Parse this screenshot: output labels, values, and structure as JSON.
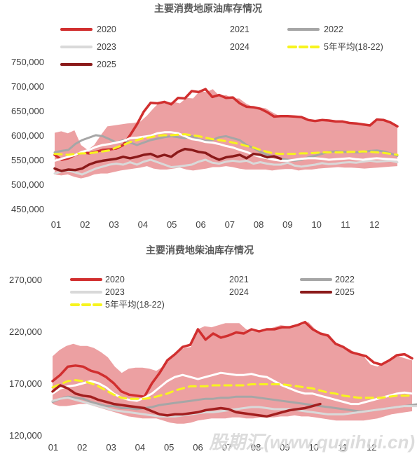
{
  "watermark": "股期汇(www.qugihui.cn)",
  "colors": {
    "band": "#eca0a2",
    "y2020": "#d12f2f",
    "y2021": "#f2b3b3",
    "y2022": "#a6a6a6",
    "y2023": "#d9d9d9",
    "y2024": "#ffffff",
    "y2025": "#8b1a1a",
    "avg": "#f7f41e"
  },
  "chart_data": [
    {
      "type": "line",
      "title": "主要消费地原油库存情况",
      "xlabel": "",
      "ylabel": "",
      "x_ticks": [
        "01",
        "02",
        "03",
        "04",
        "05",
        "06",
        "07",
        "08",
        "09",
        "10",
        "11",
        "12"
      ],
      "y_ticks": [
        "750,000",
        "700,000",
        "650,000",
        "600,000",
        "550,000",
        "500,000",
        "450,000"
      ],
      "ylim": [
        450000,
        750000
      ],
      "band_name": "2021",
      "band": {
        "upper": [
          605000,
          608000,
          604000,
          610000,
          580000,
          570000,
          580000,
          600000,
          618000,
          620000,
          622000,
          624000,
          625000,
          628000,
          640000,
          655000,
          668000,
          666000,
          668000,
          665000,
          676000,
          675000,
          690000,
          688000,
          694000,
          680000,
          682000,
          675000,
          675000,
          665000,
          658000,
          657000,
          655000,
          647000,
          640000,
          640000,
          640000,
          638000,
          637000,
          630000,
          628000,
          630000,
          630000,
          628000,
          628000,
          625000,
          625000,
          623000,
          620000,
          633000,
          632000,
          627000,
          618000
        ],
        "lower": [
          520000,
          518000,
          520000,
          515000,
          512000,
          515000,
          520000,
          522000,
          522000,
          525000,
          528000,
          530000,
          532000,
          534000,
          537000,
          532000,
          530000,
          530000,
          532000,
          534000,
          530000,
          528000,
          530000,
          532000,
          535000,
          535000,
          537000,
          535000,
          532000,
          530000,
          530000,
          530000,
          530000,
          528000,
          530000,
          531000,
          531000,
          528000,
          530000,
          530000,
          532000,
          533000,
          534000,
          535000,
          534000,
          534000,
          533000,
          532000,
          533000,
          534000,
          535000,
          536000,
          537000
        ]
      },
      "series": [
        {
          "name": "2020",
          "color": "#d12f2f",
          "width": 3.5,
          "dash": "",
          "values": [
            560000,
            550000,
            553000,
            560000,
            565000,
            563000,
            566000,
            570000,
            571000,
            573000,
            580000,
            600000,
            622000,
            648000,
            666000,
            665000,
            668000,
            663000,
            676000,
            675000,
            690000,
            688000,
            694000,
            678000,
            682000,
            676000,
            677000,
            665000,
            658000,
            657000,
            654000,
            647000,
            638000,
            639000,
            639000,
            638000,
            637000,
            631000,
            629000,
            631000,
            630000,
            628000,
            628000,
            625000,
            624000,
            622000,
            620000,
            632000,
            631000,
            626000,
            618000
          ]
        },
        {
          "name": "2022",
          "color": "#a6a6a6",
          "width": 3,
          "dash": "",
          "values": [
            565000,
            568000,
            570000,
            582000,
            590000,
            595000,
            600000,
            598000,
            592000,
            585000,
            590000,
            585000,
            580000,
            585000,
            590000,
            593000,
            596000,
            598000,
            596000,
            594000,
            598000,
            592000,
            588000,
            590000,
            596000,
            598000,
            594000,
            590000,
            580000,
            574000,
            566000,
            560000,
            556000,
            552000,
            550000,
            548000,
            550000,
            555000,
            558000,
            562000,
            566000,
            567000,
            566000,
            566000,
            565000,
            566000,
            568000,
            569000,
            567000,
            563000,
            558000
          ]
        },
        {
          "name": "2023",
          "color": "#d9d9d9",
          "width": 3,
          "dash": "",
          "values": [
            522000,
            526000,
            528000,
            524000,
            520000,
            526000,
            532000,
            536000,
            540000,
            542000,
            540000,
            545000,
            540000,
            546000,
            550000,
            545000,
            540000,
            535000,
            536000,
            538000,
            540000,
            546000,
            550000,
            544000,
            542000,
            546000,
            548000,
            546000,
            548000,
            542000,
            545000,
            542000,
            540000,
            540000,
            544000,
            538000,
            536000,
            538000,
            540000,
            543000,
            541000,
            542000,
            544000,
            545000,
            544000,
            546000,
            548000,
            546000,
            547000,
            548000,
            545000
          ]
        },
        {
          "name": "2024",
          "color": "#ffffff",
          "width": 3,
          "dash": "",
          "values": [
            548000,
            552000,
            556000,
            560000,
            566000,
            570000,
            576000,
            580000,
            582000,
            585000,
            588000,
            594000,
            595000,
            597000,
            599000,
            604000,
            606000,
            606000,
            604000,
            598000,
            592000,
            590000,
            586000,
            585000,
            582000,
            578000,
            575000,
            570000,
            566000,
            560000,
            556000,
            553000,
            550000,
            548000,
            548000,
            550000,
            552000,
            553000,
            553000,
            552000,
            550000,
            551000,
            552000,
            553000,
            551000,
            550000,
            552000,
            553000,
            552000,
            551000,
            550000
          ]
        },
        {
          "name": "5年平均(18-22)",
          "color": "#f7f41e",
          "width": 3,
          "dash": "10,7",
          "values": [
            562000,
            561000,
            560000,
            562000,
            563000,
            563000,
            565000,
            567000,
            569000,
            575000,
            580000,
            586000,
            590000,
            594000,
            596000,
            599000,
            600000,
            600000,
            601000,
            602000,
            600000,
            598000,
            595000,
            592000,
            590000,
            588000,
            585000,
            582000,
            578000,
            575000,
            570000,
            566000,
            563000,
            562000,
            562000,
            562000,
            563000,
            563000,
            564000,
            565000,
            565000,
            565000,
            565000,
            566000,
            566000,
            567000,
            566000,
            565000,
            564000,
            562000,
            560000
          ]
        },
        {
          "name": "2025",
          "color": "#8b1a1a",
          "width": 3.5,
          "dash": "",
          "values": [
            532000,
            527000,
            530000,
            529000,
            532000,
            540000,
            545000,
            548000,
            550000,
            552000,
            556000,
            553000,
            556000,
            560000,
            562000,
            556000,
            560000,
            556000,
            566000,
            572000,
            570000,
            566000,
            564000,
            556000,
            550000,
            555000,
            557000,
            560000,
            553000,
            562000,
            560000,
            555000,
            557000,
            552000
          ]
        }
      ],
      "legend": [
        {
          "name": "2020",
          "style": "2020"
        },
        {
          "name": "2021",
          "style": "2021"
        },
        {
          "name": "2022",
          "style": "2022"
        },
        {
          "name": "2023",
          "style": "2023"
        },
        {
          "name": "2024",
          "style": "2024"
        },
        {
          "name": "5年平均(18-22)",
          "style": "avg"
        },
        {
          "name": "2025",
          "style": "2025"
        }
      ]
    },
    {
      "type": "line",
      "title": "主要消费地柴油库存情况",
      "xlabel": "",
      "ylabel": "",
      "x_ticks": [
        "01",
        "02",
        "03",
        "04",
        "05",
        "06",
        "07",
        "08",
        "09",
        "10",
        "11",
        "12"
      ],
      "y_ticks": [
        "270,000",
        "220,000",
        "170,000",
        "120,000"
      ],
      "ylim": [
        120000,
        270000
      ],
      "band_name": "2021",
      "band": {
        "upper": [
          196000,
          202000,
          206000,
          208000,
          206000,
          206000,
          204000,
          200000,
          195000,
          186000,
          180000,
          184000,
          185000,
          185000,
          184000,
          182000,
          186000,
          193000,
          200000,
          204000,
          205000,
          222000,
          225000,
          224000,
          226000,
          228000,
          228000,
          228000,
          222000,
          220000,
          221000,
          222000,
          224000,
          226000,
          225000,
          225000,
          226000,
          229000,
          222000,
          218000,
          217000,
          208000,
          205000,
          203000,
          198000,
          196000,
          188000,
          186000,
          191000,
          194000,
          196000,
          194000,
          192000
        ],
        "lower": [
          150000,
          148000,
          148000,
          149000,
          150000,
          150000,
          148000,
          146000,
          144000,
          142000,
          140000,
          138000,
          137000,
          136000,
          136000,
          136000,
          134000,
          132000,
          131000,
          131000,
          132000,
          134000,
          135000,
          136000,
          136000,
          136000,
          137000,
          137000,
          136000,
          136000,
          137000,
          137000,
          137000,
          138000,
          138000,
          139000,
          138000,
          138000,
          137000,
          136000,
          135000,
          134000,
          134000,
          134000,
          134000,
          134000,
          135000,
          136000,
          138000,
          140000,
          141000,
          142000,
          143000
        ]
      },
      "series": [
        {
          "name": "2020",
          "color": "#d12f2f",
          "width": 3.5,
          "dash": "",
          "values": [
            172000,
            178000,
            186000,
            187000,
            186000,
            182000,
            180000,
            176000,
            170000,
            162000,
            159000,
            158000,
            157000,
            170000,
            180000,
            192000,
            198000,
            205000,
            207000,
            222000,
            212000,
            218000,
            214000,
            216000,
            219000,
            218000,
            222000,
            220000,
            222000,
            222000,
            224000,
            224000,
            226000,
            229000,
            222000,
            218000,
            216000,
            208000,
            205000,
            200000,
            198000,
            196000,
            190000,
            188000,
            192000,
            197000,
            198000,
            194000
          ]
        },
        {
          "name": "2022",
          "color": "#a6a6a6",
          "width": 3,
          "dash": "",
          "values": [
            152000,
            155000,
            157000,
            156000,
            155000,
            152000,
            150000,
            148000,
            148000,
            146000,
            146000,
            145000,
            146000,
            147000,
            149000,
            150000,
            151000,
            152000,
            153000,
            154000,
            155000,
            155000,
            156000,
            156000,
            157000,
            157000,
            157000,
            156000,
            155000,
            154000,
            153000,
            152000,
            151000,
            150000,
            149000,
            148000,
            147000,
            146000,
            145000,
            144000,
            143000,
            143000,
            144000,
            145000,
            146000,
            147000,
            148000,
            149000,
            150000,
            150000
          ]
        },
        {
          "name": "2023",
          "color": "#d9d9d9",
          "width": 3,
          "dash": "",
          "values": [
            153000,
            155000,
            156000,
            154000,
            152000,
            150000,
            148000,
            146000,
            144000,
            143000,
            142000,
            141000,
            140000,
            139000,
            138000,
            138000,
            138000,
            139000,
            140000,
            141000,
            142000,
            142000,
            143000,
            144000,
            145000,
            146000,
            147000,
            147000,
            146000,
            145000,
            145000,
            145000,
            144000,
            143000,
            142000,
            141000,
            140000,
            140000,
            140000,
            141000,
            142000,
            143000,
            144000,
            145000,
            146000,
            147000,
            148000,
            148000,
            148000,
            149000
          ]
        },
        {
          "name": "2024",
          "color": "#ffffff",
          "width": 3,
          "dash": "",
          "values": [
            160000,
            165000,
            167000,
            168000,
            170000,
            172000,
            170000,
            166000,
            160000,
            156000,
            154000,
            153000,
            156000,
            160000,
            166000,
            172000,
            176000,
            178000,
            176000,
            174000,
            176000,
            178000,
            180000,
            179000,
            178000,
            178000,
            179000,
            177000,
            176000,
            172000,
            168000,
            165000,
            162000,
            160000,
            160000,
            158000,
            156000,
            154000,
            152000,
            150000,
            150000,
            152000,
            154000,
            156000,
            158000,
            160000,
            161000,
            160000
          ]
        },
        {
          "name": "5年平均(18-22)",
          "color": "#f7f41e",
          "width": 3,
          "dash": "10,7",
          "values": [
            166000,
            169000,
            172000,
            173000,
            172000,
            170000,
            167000,
            163000,
            159000,
            156000,
            155000,
            155000,
            155000,
            156000,
            158000,
            160000,
            163000,
            165000,
            167000,
            167000,
            167000,
            168000,
            168000,
            168000,
            168000,
            168000,
            169000,
            169000,
            169000,
            169000,
            169000,
            168000,
            167000,
            166000,
            165000,
            163000,
            161000,
            160000,
            158000,
            157000,
            156000,
            156000,
            156000,
            156000,
            157000,
            158000,
            158000,
            158000
          ]
        },
        {
          "name": "2025",
          "color": "#a31f1f",
          "width": 3.5,
          "dash": "",
          "values": [
            162000,
            168000,
            165000,
            160000,
            158000,
            157000,
            154000,
            152000,
            150000,
            149000,
            148000,
            147000,
            146000,
            143000,
            140000,
            139000,
            140000,
            140000,
            141000,
            142000,
            144000,
            145000,
            146000,
            145000,
            142000,
            141000,
            140000,
            139000,
            138000,
            140000,
            142000,
            144000,
            145000,
            146000,
            148000,
            150000
          ]
        }
      ],
      "legend": [
        {
          "name": "2020",
          "style": "2020"
        },
        {
          "name": "2021",
          "style": "2021"
        },
        {
          "name": "2022",
          "style": "2022"
        },
        {
          "name": "2023",
          "style": "2023"
        },
        {
          "name": "2024",
          "style": "2024"
        },
        {
          "name": "2025",
          "style": "2025"
        },
        {
          "name": "5年平均(18-22)",
          "style": "avg"
        }
      ]
    }
  ]
}
